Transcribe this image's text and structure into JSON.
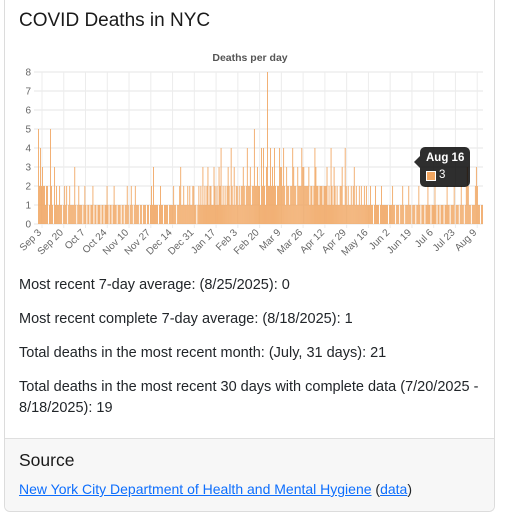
{
  "page": {
    "title": "COVID Deaths in NYC"
  },
  "chart_data": {
    "type": "bar",
    "title": "Deaths per day",
    "xlabel": "",
    "ylabel": "",
    "ylim": [
      0,
      8
    ],
    "yticks": [
      0,
      1,
      2,
      3,
      4,
      5,
      6,
      7,
      8
    ],
    "grid": true,
    "bar_color": "#f0a560",
    "tick_labels": [
      "Sep 3",
      "Sep 20",
      "Oct 7",
      "Oct 24",
      "Nov 10",
      "Nov 27",
      "Dec 14",
      "Dec 31",
      "Jan 17",
      "Feb 3",
      "Feb 20",
      "Mar 9",
      "Mar 26",
      "Apr 12",
      "Apr 29",
      "May 16",
      "Jun 2",
      "Jun 19",
      "Jul 6",
      "Jul 23",
      "Aug 9"
    ],
    "values": [
      5,
      2,
      4,
      2,
      3,
      2,
      2,
      1,
      2,
      2,
      0,
      1,
      5,
      2,
      1,
      0,
      3,
      1,
      2,
      1,
      1,
      2,
      1,
      1,
      0,
      1,
      2,
      1,
      2,
      0,
      1,
      2,
      1,
      1,
      1,
      1,
      3,
      1,
      0,
      1,
      2,
      1,
      1,
      1,
      0,
      1,
      2,
      1,
      0,
      1,
      1,
      0,
      1,
      1,
      2,
      0,
      1,
      1,
      0,
      1,
      1,
      1,
      0,
      1,
      1,
      0,
      1,
      1,
      2,
      1,
      0,
      1,
      1,
      0,
      1,
      2,
      1,
      1,
      0,
      1,
      1,
      1,
      0,
      1,
      1,
      0,
      1,
      1,
      2,
      1,
      0,
      1,
      2,
      1,
      0,
      1,
      2,
      1,
      1,
      1,
      0,
      1,
      1,
      0,
      1,
      1,
      1,
      0,
      1,
      1,
      0,
      1,
      2,
      1,
      3,
      1,
      1,
      1,
      1,
      0,
      1,
      2,
      1,
      1,
      0,
      1,
      1,
      1,
      1,
      0,
      1,
      1,
      1,
      1,
      2,
      1,
      1,
      0,
      1,
      1,
      2,
      3,
      1,
      1,
      2,
      1,
      1,
      1,
      2,
      1,
      2,
      1,
      1,
      2,
      2,
      1,
      1,
      0,
      1,
      2,
      1,
      2,
      1,
      3,
      1,
      2,
      1,
      2,
      3,
      1,
      2,
      2,
      1,
      1,
      3,
      2,
      1,
      2,
      1,
      3,
      2,
      4,
      1,
      2,
      1,
      2,
      1,
      2,
      3,
      2,
      1,
      4,
      2,
      1,
      3,
      1,
      2,
      2,
      1,
      2,
      1,
      2,
      2,
      3,
      2,
      1,
      2,
      4,
      2,
      2,
      3,
      1,
      2,
      2,
      5,
      2,
      2,
      3,
      2,
      2,
      1,
      4,
      2,
      4,
      2,
      1,
      3,
      8,
      2,
      2,
      4,
      2,
      3,
      2,
      4,
      2,
      1,
      2,
      2,
      4,
      3,
      3,
      2,
      4,
      2,
      1,
      3,
      2,
      2,
      1,
      2,
      2,
      4,
      3,
      2,
      2,
      1,
      3,
      2,
      2,
      2,
      4,
      3,
      3,
      2,
      2,
      2,
      2,
      3,
      1,
      2,
      2,
      1,
      2,
      4,
      3,
      2,
      2,
      1,
      2,
      2,
      2,
      1,
      2,
      2,
      2,
      3,
      1,
      2,
      1,
      4,
      2,
      1,
      3,
      2,
      1,
      2,
      1,
      1,
      2,
      2,
      3,
      1,
      1,
      4,
      2,
      1,
      2,
      1,
      1,
      2,
      1,
      2,
      3,
      1,
      2,
      1,
      1,
      2,
      1,
      2,
      1,
      1,
      2,
      1,
      2,
      1,
      1,
      1,
      2,
      1,
      1,
      0,
      1,
      2,
      1,
      1,
      1,
      0,
      1,
      2,
      1,
      1,
      1,
      1,
      1,
      1,
      0,
      1,
      1,
      1,
      2,
      1,
      1,
      0,
      1,
      1,
      1,
      0,
      1,
      1,
      2,
      1,
      0,
      1,
      1,
      1,
      2,
      1,
      1,
      0,
      1,
      1,
      1,
      0,
      1,
      1,
      2,
      1,
      0,
      1,
      1,
      1,
      0,
      1,
      1,
      2,
      1,
      1,
      0,
      1,
      1,
      1,
      2,
      1,
      0,
      1,
      1,
      0,
      1,
      1,
      1,
      0,
      1,
      1,
      2,
      1,
      1,
      0,
      1,
      1,
      1,
      2,
      0,
      1,
      1,
      1,
      0,
      1,
      2,
      1,
      1,
      0,
      1,
      2,
      3,
      2,
      1,
      1,
      0,
      1,
      1,
      1,
      2,
      3,
      2,
      1,
      1,
      0,
      1,
      1
    ]
  },
  "tooltip": {
    "date": "Aug 16",
    "value": "3"
  },
  "stats": {
    "line1": "Most recent 7-day average: (8/25/2025): 0",
    "line2": "Most recent complete 7-day average: (8/18/2025): 1",
    "line3": "Total deaths in the most recent month: (July, 31 days): 21",
    "line4": "Total deaths in the most recent 30 days with complete data (7/20/2025 - 8/18/2025): 19"
  },
  "source": {
    "heading": "Source",
    "link_text": "New York City Department of Health and Mental Hygiene",
    "open_paren": " (",
    "data_link": "data",
    "close_paren": ")"
  }
}
